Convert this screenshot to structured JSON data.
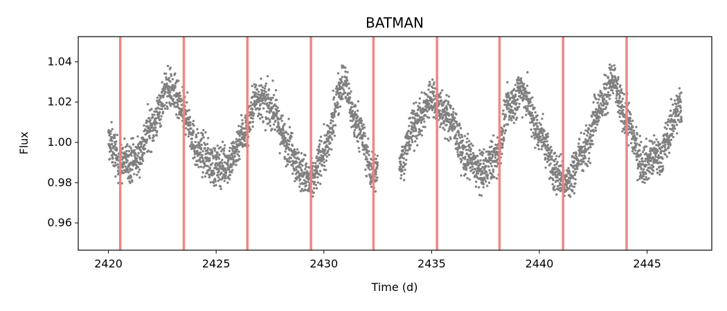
{
  "chart_data": {
    "type": "scatter",
    "title": "BATMAN",
    "xlabel": "Time (d)",
    "ylabel": "Flux",
    "xlim": [
      2418.6,
      2448.0
    ],
    "ylim": [
      0.9465,
      1.0525
    ],
    "xticks": [
      2420,
      2425,
      2430,
      2435,
      2440,
      2445
    ],
    "xtick_labels": [
      "2420",
      "2425",
      "2430",
      "2435",
      "2440",
      "2445"
    ],
    "yticks": [
      0.96,
      0.98,
      1.0,
      1.02,
      1.04
    ],
    "ytick_labels": [
      "0.96",
      "0.98",
      "1.00",
      "1.02",
      "1.04"
    ],
    "grid": false,
    "point_color": "#808080",
    "transit_line_color": "#f08080",
    "transit_times": [
      2420.55,
      2423.5,
      2426.45,
      2429.4,
      2432.3,
      2435.25,
      2438.15,
      2441.1,
      2444.05
    ],
    "series": [
      {
        "time_range": [
          2420.0,
          2446.6
        ],
        "gap": [
          2432.5,
          2433.5
        ],
        "envelope": [
          {
            "x": 2420.0,
            "y": 1.0
          },
          {
            "x": 2420.6,
            "y": 0.99
          },
          {
            "x": 2421.3,
            "y": 0.992
          },
          {
            "x": 2422.0,
            "y": 1.008
          },
          {
            "x": 2422.8,
            "y": 1.027
          },
          {
            "x": 2423.5,
            "y": 1.015
          },
          {
            "x": 2424.2,
            "y": 0.995
          },
          {
            "x": 2425.0,
            "y": 0.988
          },
          {
            "x": 2425.6,
            "y": 0.99
          },
          {
            "x": 2426.3,
            "y": 1.005
          },
          {
            "x": 2426.9,
            "y": 1.022
          },
          {
            "x": 2427.5,
            "y": 1.018
          },
          {
            "x": 2428.3,
            "y": 1.0
          },
          {
            "x": 2429.0,
            "y": 0.985
          },
          {
            "x": 2429.4,
            "y": 0.98
          },
          {
            "x": 2430.0,
            "y": 0.995
          },
          {
            "x": 2430.9,
            "y": 1.03
          },
          {
            "x": 2431.5,
            "y": 1.01
          },
          {
            "x": 2432.3,
            "y": 0.985
          },
          {
            "x": 2433.5,
            "y": 0.99
          },
          {
            "x": 2434.3,
            "y": 1.01
          },
          {
            "x": 2435.0,
            "y": 1.022
          },
          {
            "x": 2435.8,
            "y": 1.012
          },
          {
            "x": 2436.6,
            "y": 0.993
          },
          {
            "x": 2437.3,
            "y": 0.985
          },
          {
            "x": 2438.0,
            "y": 0.993
          },
          {
            "x": 2438.6,
            "y": 1.018
          },
          {
            "x": 2439.2,
            "y": 1.026
          },
          {
            "x": 2440.0,
            "y": 1.005
          },
          {
            "x": 2440.8,
            "y": 0.985
          },
          {
            "x": 2441.3,
            "y": 0.98
          },
          {
            "x": 2442.0,
            "y": 0.995
          },
          {
            "x": 2442.8,
            "y": 1.018
          },
          {
            "x": 2443.4,
            "y": 1.03
          },
          {
            "x": 2444.0,
            "y": 1.012
          },
          {
            "x": 2444.8,
            "y": 0.99
          },
          {
            "x": 2445.5,
            "y": 0.993
          },
          {
            "x": 2446.6,
            "y": 1.018
          }
        ],
        "scatter_amplitude": 0.009
      }
    ]
  }
}
